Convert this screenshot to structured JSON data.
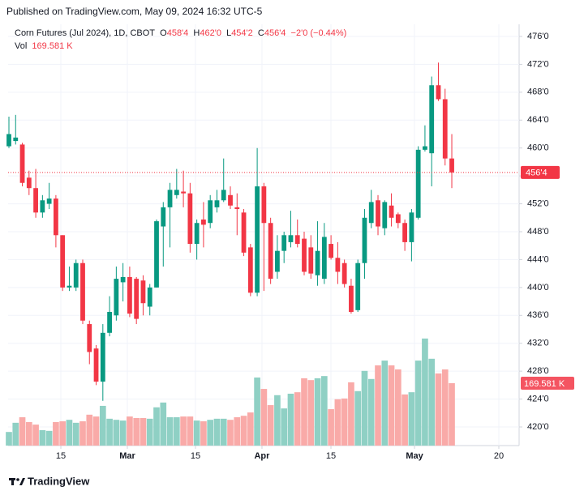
{
  "header": {
    "published": "Published on TradingView.com, May 09, 2024 16:32 UTC-5"
  },
  "footer": {
    "brand": "TradingView"
  },
  "chart_data": {
    "type": "candlestick",
    "legend": {
      "o_label": "O",
      "o": "458'4",
      "h_label": "H",
      "h": "462'0",
      "l_label": "L",
      "l": "454'2",
      "c_label": "C",
      "c": "456'4",
      "change": "−2'0 (−0.44%)"
    },
    "last_price": {
      "value": 456.5,
      "label": "456'4"
    },
    "up_color": "#089981",
    "down_color": "#f23645",
    "volume_up_color": "#8fd0c4",
    "volume_down_color": "#f9aaa8",
    "series": [
      {
        "name": "Corn Futures (Jul 2024), 1D, CBOT",
        "open": [
          460.25,
          461,
          460.5,
          455.75,
          454.25,
          450.75,
          452,
          452.75,
          447.5,
          440,
          440,
          443.5,
          434.75,
          431.25,
          426.5,
          433.5,
          436,
          440.75,
          441.5,
          441.25,
          441,
          437.25,
          440,
          448.75,
          451.5,
          453.25,
          453.75,
          453.5,
          446.25,
          449.75,
          449.25,
          451.5,
          452.5,
          453.25,
          451.5,
          450.75,
          445.75,
          439.25,
          454.5,
          449.25,
          442.25,
          445.25,
          446.5,
          447.5,
          447,
          445.75,
          441.75,
          441.25,
          446.25,
          444.25,
          443.5,
          440.25,
          436.75,
          443.5,
          449.25,
          452.5,
          448.5,
          451.75,
          450.5,
          449.25,
          446.5,
          450,
          459.75,
          459.25,
          469,
          467,
          458.5
        ],
        "high": [
          464.5,
          464.75,
          460.75,
          456.75,
          457,
          453.25,
          455,
          453.25,
          447.5,
          443,
          444,
          444,
          435.25,
          431.75,
          434.75,
          438.75,
          443,
          443.5,
          443,
          441.5,
          441.75,
          440.5,
          449.75,
          452.25,
          455,
          457,
          456.75,
          455,
          449.75,
          452.25,
          453.25,
          454,
          458.5,
          454.5,
          453.5,
          451.25,
          446.25,
          460,
          455,
          450,
          447.5,
          448,
          451,
          449.75,
          448,
          447.5,
          449.5,
          449.25,
          447.5,
          446.5,
          444,
          441.25,
          444,
          451.25,
          454,
          453.25,
          452.5,
          453.5,
          450.75,
          449.75,
          451.25,
          460.25,
          463.25,
          470.25,
          472.25,
          468.5,
          462
        ],
        "low": [
          460,
          460.5,
          454.5,
          453.25,
          450,
          450,
          451.25,
          445.75,
          439.5,
          439.5,
          439.5,
          434.75,
          429,
          426,
          423.75,
          433,
          435.25,
          438,
          435.75,
          434.75,
          436,
          436,
          440,
          443,
          445.75,
          452.75,
          451.5,
          445,
          444,
          445.75,
          448.5,
          450.75,
          452.25,
          451.25,
          447.5,
          444.5,
          438.75,
          438.75,
          439.5,
          440.5,
          441.25,
          443.5,
          445.75,
          445.75,
          441.75,
          441.25,
          440.25,
          440.5,
          444,
          440.5,
          440,
          436.25,
          436.5,
          441.25,
          448.5,
          447.5,
          447.5,
          448.75,
          448.5,
          445.25,
          443.75,
          449.75,
          459.5,
          454.5,
          466.75,
          457.5,
          454.25
        ],
        "close": [
          462,
          461.5,
          455,
          454.25,
          450.75,
          452.5,
          452.75,
          447.5,
          440,
          440.25,
          443.5,
          435.25,
          430.75,
          426.5,
          433.5,
          436.5,
          441.25,
          441.5,
          436.25,
          435.5,
          437.75,
          440,
          449.5,
          451.5,
          454,
          454,
          453.5,
          446.25,
          449.25,
          449,
          452.5,
          452.5,
          454,
          451.75,
          451.25,
          445,
          439.25,
          454.5,
          449.25,
          441.25,
          445.25,
          447.5,
          447.5,
          446.25,
          442.25,
          442,
          445.25,
          447.25,
          444.25,
          442.25,
          440.5,
          436.5,
          443.5,
          450,
          452.25,
          448.75,
          452.25,
          450,
          449.25,
          446.5,
          450.75,
          459.75,
          460.25,
          469,
          467,
          458.5,
          456.5
        ]
      },
      {
        "name": "Vol",
        "axis": "y2",
        "values": [
          37,
          62,
          77,
          64,
          57,
          42,
          40,
          64,
          66,
          70,
          62,
          66,
          84,
          79,
          108,
          73,
          70,
          68,
          79,
          75,
          75,
          73,
          104,
          117,
          77,
          77,
          79,
          79,
          68,
          66,
          70,
          73,
          73,
          70,
          77,
          81,
          90,
          185,
          154,
          110,
          137,
          101,
          141,
          145,
          183,
          178,
          183,
          189,
          99,
          126,
          128,
          172,
          148,
          203,
          181,
          218,
          231,
          218,
          207,
          139,
          145,
          231,
          291,
          236,
          196,
          207,
          169.581
        ],
        "value_labels": [
          null,
          null,
          null,
          null,
          null,
          null,
          null,
          null,
          null,
          null,
          null,
          null,
          null,
          null,
          null,
          null,
          null,
          null,
          null,
          null,
          null,
          null,
          null,
          null,
          null,
          null,
          null,
          null,
          null,
          null,
          null,
          null,
          null,
          null,
          null,
          null,
          null,
          null,
          null,
          null,
          null,
          null,
          null,
          null,
          null,
          null,
          null,
          null,
          null,
          null,
          null,
          null,
          null,
          null,
          null,
          null,
          null,
          null,
          null,
          null,
          null,
          null,
          null,
          null,
          null,
          null,
          "169.581 K"
        ]
      }
    ],
    "ylim": [
      417.33,
      477.74
    ],
    "yticks": [
      {
        "value": 420,
        "label": "420'0"
      },
      {
        "value": 424,
        "label": "424'0"
      },
      {
        "value": 428,
        "label": "428'0"
      },
      {
        "value": 432,
        "label": "432'0"
      },
      {
        "value": 436,
        "label": "436'0"
      },
      {
        "value": 440,
        "label": "440'0"
      },
      {
        "value": 444,
        "label": "444'0"
      },
      {
        "value": 448,
        "label": "448'0"
      },
      {
        "value": 452,
        "label": "452'0"
      },
      {
        "value": 456,
        "label": "456'0"
      },
      {
        "value": 460,
        "label": "460'0"
      },
      {
        "value": 464,
        "label": "464'0"
      },
      {
        "value": 468,
        "label": "468'0"
      },
      {
        "value": 472,
        "label": "472'0"
      },
      {
        "value": 476,
        "label": "476'0"
      }
    ],
    "y2lim": [
      0,
      1145
    ],
    "xlim": [
      -0.12,
      76.03
    ],
    "xticks": [
      {
        "value": 7.74,
        "label": "15"
      },
      {
        "value": 17.65,
        "label": "Mar"
      },
      {
        "value": 27.8,
        "label": "15"
      },
      {
        "value": 37.71,
        "label": "Apr"
      },
      {
        "value": 47.99,
        "label": "15"
      },
      {
        "value": 60.44,
        "label": "May"
      },
      {
        "value": 73.01,
        "label": "20"
      }
    ],
    "grid": true
  }
}
